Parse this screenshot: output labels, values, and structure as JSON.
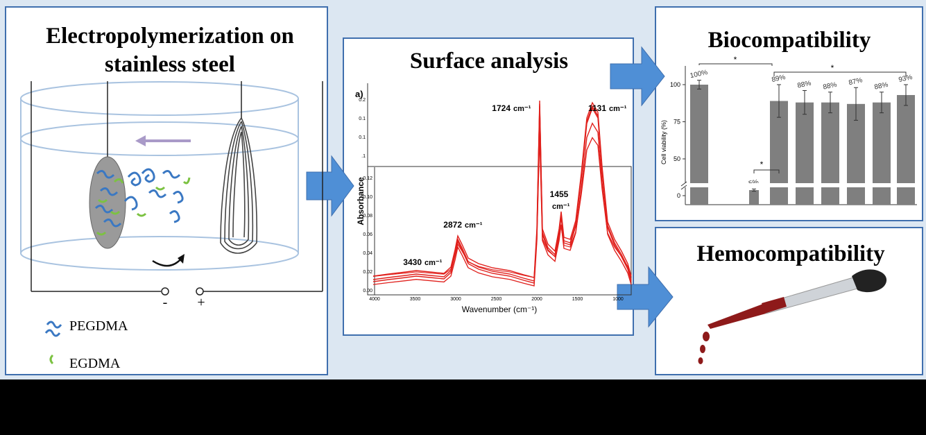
{
  "left_panel": {
    "title": [
      "Electropolymerization on",
      "stainless steel"
    ],
    "terminals": [
      "-",
      "+"
    ],
    "legend": [
      "PEGDMA",
      "EGDMA"
    ]
  },
  "middle_panel": {
    "title": "Surface analysis",
    "panel_label": "a)",
    "peaks": [
      {
        "wavenumber": "3430",
        "unit": "cm⁻¹"
      },
      {
        "wavenumber": "2872",
        "unit": "cm⁻¹"
      },
      {
        "wavenumber": "1724",
        "unit": "cm⁻¹"
      },
      {
        "wavenumber": "1455",
        "unit": "cm⁻¹"
      },
      {
        "wavenumber": "1131",
        "unit": "cm⁻¹"
      }
    ],
    "x_axis_label": "Wavenumber (cm⁻¹)",
    "y_axis_label": "Absorbance",
    "x_ticks": [
      4000,
      3500,
      3000,
      2500,
      2000,
      1500,
      1000
    ],
    "y_ticks": [
      "0.00",
      "0.02",
      "0.04",
      "0.06",
      "0.08",
      "0.10",
      "0.12"
    ],
    "upper_y_ticks": [
      "0.2",
      "0.1",
      "0.1",
      ".1"
    ]
  },
  "right_top": {
    "title": "Biocompatibility",
    "chart": {
      "type": "bar",
      "y_axis_label": "Cell viability (%)",
      "values": [
        100,
        5,
        89,
        88,
        88,
        87,
        88,
        93
      ],
      "value_labels": [
        "100%",
        "5%",
        "89%",
        "88%",
        "88%",
        "87%",
        "88%",
        "93%"
      ],
      "errors": [
        3,
        1,
        11,
        8,
        7,
        11,
        7,
        7
      ],
      "color": "#7f7f7f",
      "ylim": [
        0,
        100
      ],
      "yticks": [
        0,
        50,
        75,
        100
      ],
      "significance": [
        "*",
        "*",
        "*"
      ]
    }
  },
  "right_bottom": {
    "title": "Hemocompatibility"
  }
}
